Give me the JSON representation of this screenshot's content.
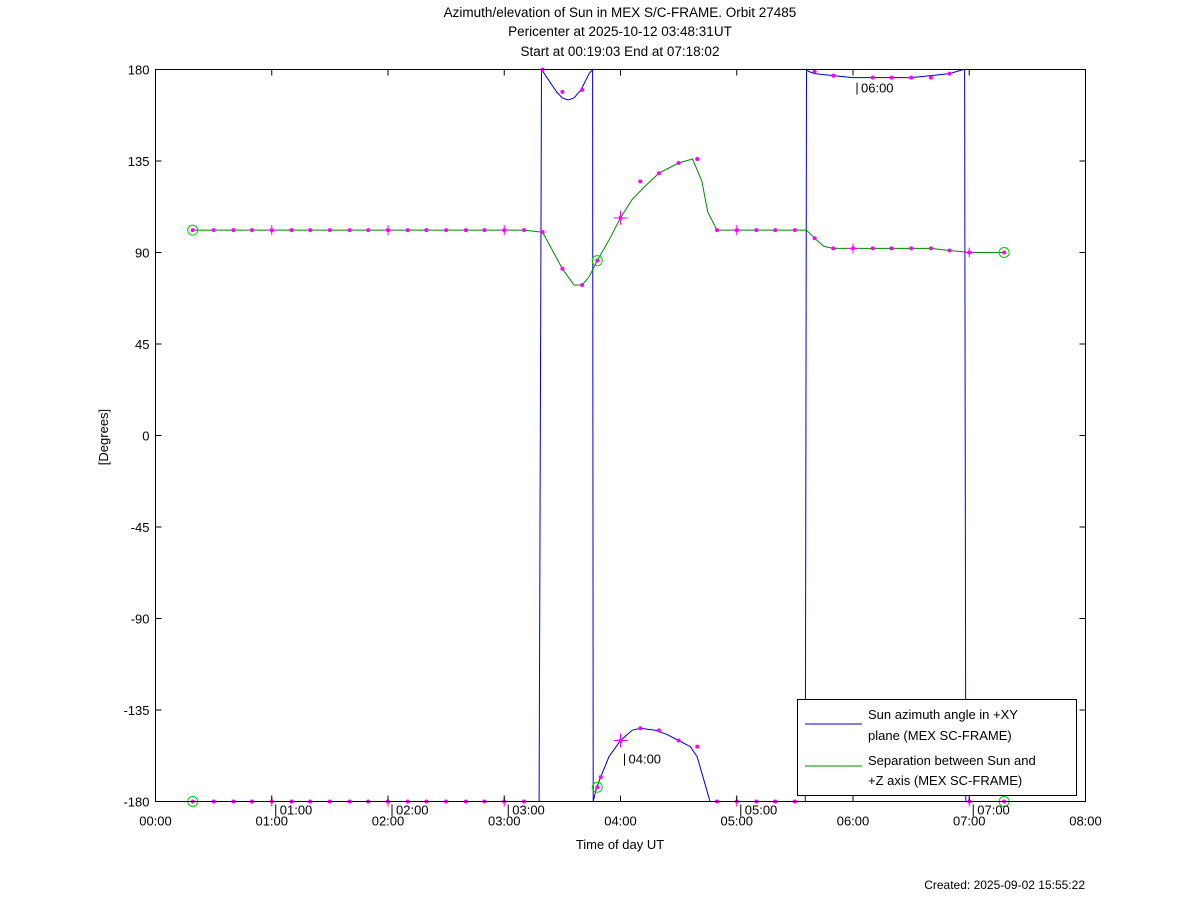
{
  "chart_data": {
    "type": "line",
    "title": "Azimuth/elevation of Sun in MEX S/C-FRAME.  Orbit 27485",
    "subtitle_lines": [
      "Pericenter at 2025-10-12 03:48:31UT",
      "Start at 00:19:03 End at 07:18:02"
    ],
    "xlabel": "Time of day UT",
    "ylabel": "[Degrees]",
    "footer": "Created: 2025-09-02 15:55:22",
    "xlim": [
      0,
      8
    ],
    "ylim": [
      -180,
      180
    ],
    "x_ticks": [
      0,
      1,
      2,
      3,
      4,
      5,
      6,
      7,
      8
    ],
    "x_tick_labels": [
      "00:00",
      "01:00",
      "02:00",
      "03:00",
      "04:00",
      "05:00",
      "06:00",
      "07:00",
      "08:00"
    ],
    "y_ticks": [
      180,
      135,
      90,
      45,
      0,
      -45,
      -90,
      -135,
      -180
    ],
    "y_tick_labels": [
      "180",
      "135",
      "90",
      "45",
      "0",
      "-45",
      "-90",
      "-135",
      "-180"
    ],
    "grid": false,
    "legend_position": "bottom-right",
    "time_annotations": [
      {
        "x": 1.0,
        "y": -180,
        "label": "01:00"
      },
      {
        "x": 2.0,
        "y": -180,
        "label": "02:00"
      },
      {
        "x": 3.0,
        "y": -180,
        "label": "03:00"
      },
      {
        "x": 4.0,
        "y": -155,
        "label": "04:00"
      },
      {
        "x": 5.0,
        "y": -180,
        "label": "05:00"
      },
      {
        "x": 6.0,
        "y": 175,
        "label": "06:00"
      },
      {
        "x": 7.0,
        "y": -180,
        "label": "07:00"
      }
    ],
    "series": [
      {
        "name": "Sun azimuth angle in +XY plane (MEX SC-FRAME)",
        "legend_lines": [
          "Sun azimuth angle in +XY",
          "plane (MEX SC-FRAME)"
        ],
        "color": "#0000cc",
        "x": [
          0.32,
          0.5,
          0.67,
          0.83,
          1.0,
          1.17,
          1.33,
          1.5,
          1.67,
          1.83,
          2.0,
          2.17,
          2.33,
          2.5,
          2.67,
          2.83,
          3.0,
          3.17,
          3.3,
          3.32,
          3.38,
          3.45,
          3.5,
          3.55,
          3.6,
          3.66,
          3.73,
          3.76,
          3.765,
          3.79,
          3.83,
          3.9,
          4.0,
          4.1,
          4.17,
          4.3,
          4.4,
          4.5,
          4.6,
          4.66,
          4.72,
          4.77,
          4.83,
          5.0,
          5.17,
          5.33,
          5.5,
          5.59,
          5.6,
          5.62,
          5.67,
          5.83,
          6.0,
          6.17,
          6.33,
          6.5,
          6.67,
          6.83,
          6.95,
          6.96,
          6.97,
          7.0,
          7.17,
          7.3
        ],
        "y": [
          -180,
          -180,
          -180,
          -180,
          -180,
          -180,
          -180,
          -180,
          -180,
          -180,
          -180,
          -180,
          -180,
          -180,
          -180,
          -180,
          -180,
          -180,
          -180,
          180,
          175,
          169,
          166,
          165,
          166,
          170,
          178,
          180,
          -180,
          -174,
          -168,
          -158,
          -150,
          -145,
          -144,
          -145,
          -147,
          -150,
          -153,
          -158,
          -170,
          -180,
          -180,
          -180,
          -180,
          -180,
          -180,
          -180,
          180,
          179,
          178,
          177,
          176,
          176,
          176,
          176,
          177,
          178,
          180,
          180,
          -180,
          -180,
          -180,
          -180
        ]
      },
      {
        "name": "Separation between Sun and +Z axis (MEX SC-FRAME)",
        "legend_lines": [
          "Separation between Sun and",
          "+Z axis (MEX SC-FRAME)"
        ],
        "color": "#008800",
        "x": [
          0.32,
          0.5,
          0.67,
          0.83,
          1.0,
          1.17,
          1.33,
          1.5,
          1.67,
          1.83,
          2.0,
          2.17,
          2.33,
          2.5,
          2.67,
          2.83,
          3.0,
          3.17,
          3.33,
          3.5,
          3.6,
          3.67,
          3.73,
          3.8,
          3.9,
          4.0,
          4.1,
          4.2,
          4.33,
          4.5,
          4.62,
          4.7,
          4.75,
          4.83,
          5.0,
          5.17,
          5.33,
          5.5,
          5.6,
          5.67,
          5.75,
          5.83,
          6.0,
          6.17,
          6.33,
          6.5,
          6.67,
          6.83,
          7.0,
          7.17,
          7.3
        ],
        "y": [
          101,
          101,
          101,
          101,
          101,
          101,
          101,
          101,
          101,
          101,
          101,
          101,
          101,
          101,
          101,
          101,
          101,
          101,
          100,
          82,
          74,
          74,
          78,
          86,
          96,
          107,
          116,
          122,
          129,
          134,
          136,
          125,
          110,
          101,
          101,
          101,
          101,
          101,
          101,
          97,
          93,
          92,
          92,
          92,
          92,
          92,
          92,
          91,
          90,
          90,
          90
        ]
      }
    ],
    "markers": {
      "dot_color": "#ff00ff",
      "endpoint_circle_color": "#00cc00",
      "circles": [
        {
          "x": 0.32,
          "y": 101
        },
        {
          "x": 0.32,
          "y": -180
        },
        {
          "x": 3.8,
          "y": 86
        },
        {
          "x": 3.8,
          "y": -173
        },
        {
          "x": 7.3,
          "y": 90
        },
        {
          "x": 7.3,
          "y": -180
        }
      ],
      "crosses": [
        {
          "x": 4.0,
          "y": 107
        },
        {
          "x": 4.0,
          "y": -150
        },
        {
          "x": 1.0,
          "y": 101
        },
        {
          "x": 2.0,
          "y": 101
        },
        {
          "x": 3.0,
          "y": 101
        },
        {
          "x": 5.0,
          "y": 101
        },
        {
          "x": 6.0,
          "y": 92
        },
        {
          "x": 7.0,
          "y": 90
        },
        {
          "x": 1.0,
          "y": -180
        },
        {
          "x": 2.0,
          "y": -180
        },
        {
          "x": 3.0,
          "y": -180
        },
        {
          "x": 5.0,
          "y": -180
        },
        {
          "x": 7.0,
          "y": -180
        }
      ],
      "dots": [
        {
          "x": 0.5,
          "y": 101
        },
        {
          "x": 0.67,
          "y": 101
        },
        {
          "x": 0.83,
          "y": 101
        },
        {
          "x": 1.17,
          "y": 101
        },
        {
          "x": 1.33,
          "y": 101
        },
        {
          "x": 1.5,
          "y": 101
        },
        {
          "x": 1.67,
          "y": 101
        },
        {
          "x": 1.83,
          "y": 101
        },
        {
          "x": 2.17,
          "y": 101
        },
        {
          "x": 2.33,
          "y": 101
        },
        {
          "x": 2.5,
          "y": 101
        },
        {
          "x": 2.67,
          "y": 101
        },
        {
          "x": 2.83,
          "y": 101
        },
        {
          "x": 3.17,
          "y": 101
        },
        {
          "x": 3.33,
          "y": 100
        },
        {
          "x": 3.5,
          "y": 82
        },
        {
          "x": 3.67,
          "y": 74
        },
        {
          "x": 4.17,
          "y": 125
        },
        {
          "x": 4.33,
          "y": 129
        },
        {
          "x": 4.5,
          "y": 134
        },
        {
          "x": 4.66,
          "y": 136
        },
        {
          "x": 4.83,
          "y": 101
        },
        {
          "x": 5.17,
          "y": 101
        },
        {
          "x": 5.33,
          "y": 101
        },
        {
          "x": 5.5,
          "y": 101
        },
        {
          "x": 5.67,
          "y": 97
        },
        {
          "x": 5.83,
          "y": 92
        },
        {
          "x": 6.17,
          "y": 92
        },
        {
          "x": 6.33,
          "y": 92
        },
        {
          "x": 6.5,
          "y": 92
        },
        {
          "x": 6.67,
          "y": 92
        },
        {
          "x": 6.83,
          "y": 91
        },
        {
          "x": 3.33,
          "y": 180
        },
        {
          "x": 3.5,
          "y": 169
        },
        {
          "x": 3.67,
          "y": 170
        },
        {
          "x": 5.67,
          "y": 179
        },
        {
          "x": 5.83,
          "y": 177
        },
        {
          "x": 6.17,
          "y": 176
        },
        {
          "x": 6.33,
          "y": 176
        },
        {
          "x": 6.5,
          "y": 176
        },
        {
          "x": 6.67,
          "y": 176
        },
        {
          "x": 6.83,
          "y": 178
        },
        {
          "x": 3.83,
          "y": -168
        },
        {
          "x": 4.17,
          "y": -144
        },
        {
          "x": 4.33,
          "y": -145
        },
        {
          "x": 4.5,
          "y": -150
        },
        {
          "x": 4.66,
          "y": -153
        },
        {
          "x": 0.5,
          "y": -180
        },
        {
          "x": 0.67,
          "y": -180
        },
        {
          "x": 0.83,
          "y": -180
        },
        {
          "x": 1.17,
          "y": -180
        },
        {
          "x": 1.33,
          "y": -180
        },
        {
          "x": 1.5,
          "y": -180
        },
        {
          "x": 1.67,
          "y": -180
        },
        {
          "x": 1.83,
          "y": -180
        },
        {
          "x": 2.17,
          "y": -180
        },
        {
          "x": 2.33,
          "y": -180
        },
        {
          "x": 2.5,
          "y": -180
        },
        {
          "x": 2.67,
          "y": -180
        },
        {
          "x": 2.83,
          "y": -180
        },
        {
          "x": 3.17,
          "y": -180
        },
        {
          "x": 4.83,
          "y": -180
        },
        {
          "x": 5.17,
          "y": -180
        },
        {
          "x": 5.33,
          "y": -180
        },
        {
          "x": 5.5,
          "y": -180
        }
      ]
    }
  }
}
